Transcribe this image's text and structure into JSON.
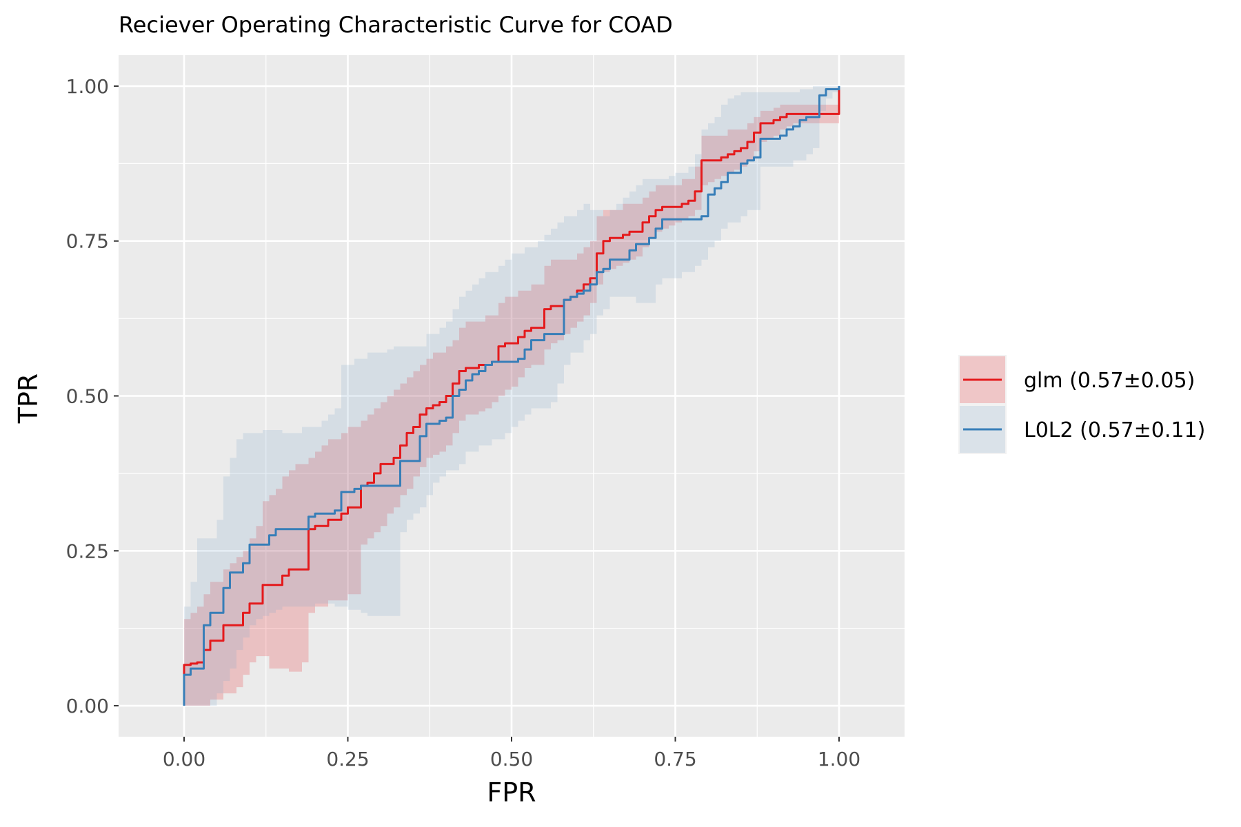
{
  "chart_data": {
    "type": "line",
    "title": "Reciever Operating Characteristic Curve for COAD",
    "xlabel": "FPR",
    "ylabel": "TPR",
    "xlim": [
      -0.1,
      1.1
    ],
    "ylim": [
      -0.05,
      1.05
    ],
    "x_ticks": [
      0,
      0.25,
      0.5,
      0.75,
      1
    ],
    "x_tick_labels": [
      "0.00",
      "0.25",
      "0.50",
      "0.75",
      "1.00"
    ],
    "y_ticks": [
      0,
      0.25,
      0.5,
      0.75,
      1
    ],
    "y_tick_labels": [
      "0.00",
      "0.25",
      "0.50",
      "0.75",
      "1.00"
    ],
    "grid": true,
    "legend_position": "right",
    "series": [
      {
        "name": "glm",
        "label": "glm (0.57±0.05)",
        "color": "#E41A1C",
        "fill": "#E41A1C",
        "x": [
          0,
          0,
          0.01,
          0.02,
          0.03,
          0.04,
          0.05,
          0.06,
          0.07,
          0.08,
          0.09,
          0.1,
          0.11,
          0.12,
          0.13,
          0.14,
          0.15,
          0.16,
          0.17,
          0.18,
          0.19,
          0.2,
          0.21,
          0.22,
          0.23,
          0.24,
          0.25,
          0.26,
          0.27,
          0.28,
          0.29,
          0.3,
          0.31,
          0.32,
          0.33,
          0.34,
          0.35,
          0.36,
          0.37,
          0.38,
          0.39,
          0.4,
          0.41,
          0.42,
          0.43,
          0.44,
          0.45,
          0.46,
          0.47,
          0.48,
          0.49,
          0.5,
          0.51,
          0.52,
          0.53,
          0.54,
          0.55,
          0.56,
          0.57,
          0.58,
          0.59,
          0.6,
          0.61,
          0.62,
          0.63,
          0.64,
          0.65,
          0.66,
          0.67,
          0.68,
          0.69,
          0.7,
          0.71,
          0.72,
          0.73,
          0.74,
          0.75,
          0.76,
          0.77,
          0.78,
          0.79,
          0.8,
          0.81,
          0.82,
          0.83,
          0.84,
          0.85,
          0.86,
          0.87,
          0.88,
          0.89,
          0.9,
          0.91,
          0.92,
          0.93,
          0.94,
          0.95,
          0.96,
          0.97,
          0.98,
          0.99,
          1.0
        ],
        "tpr": [
          0,
          0.066,
          0.068,
          0.07,
          0.09,
          0.105,
          0.105,
          0.13,
          0.13,
          0.13,
          0.15,
          0.165,
          0.165,
          0.195,
          0.195,
          0.195,
          0.21,
          0.22,
          0.22,
          0.22,
          0.285,
          0.29,
          0.29,
          0.3,
          0.3,
          0.31,
          0.32,
          0.32,
          0.355,
          0.36,
          0.375,
          0.39,
          0.39,
          0.4,
          0.42,
          0.44,
          0.45,
          0.47,
          0.48,
          0.485,
          0.49,
          0.5,
          0.52,
          0.54,
          0.545,
          0.545,
          0.55,
          0.55,
          0.555,
          0.58,
          0.585,
          0.585,
          0.595,
          0.605,
          0.61,
          0.61,
          0.64,
          0.645,
          0.645,
          0.655,
          0.66,
          0.67,
          0.68,
          0.69,
          0.73,
          0.75,
          0.755,
          0.755,
          0.76,
          0.765,
          0.765,
          0.78,
          0.79,
          0.8,
          0.805,
          0.805,
          0.805,
          0.81,
          0.815,
          0.83,
          0.88,
          0.88,
          0.88,
          0.885,
          0.89,
          0.895,
          0.9,
          0.91,
          0.925,
          0.94,
          0.94,
          0.945,
          0.95,
          0.955,
          0.955,
          0.955,
          0.955,
          0.955,
          0.955,
          0.955,
          0.955,
          1.0
        ],
        "lower": [
          0,
          0,
          0,
          0,
          0,
          0.01,
          0.01,
          0.02,
          0.02,
          0.03,
          0.05,
          0.07,
          0.08,
          0.08,
          0.06,
          0.06,
          0.06,
          0.055,
          0.055,
          0.07,
          0.15,
          0.16,
          0.16,
          0.17,
          0.17,
          0.17,
          0.18,
          0.18,
          0.26,
          0.27,
          0.28,
          0.29,
          0.31,
          0.32,
          0.34,
          0.35,
          0.37,
          0.385,
          0.4,
          0.405,
          0.41,
          0.42,
          0.44,
          0.46,
          0.47,
          0.47,
          0.475,
          0.48,
          0.49,
          0.5,
          0.51,
          0.515,
          0.53,
          0.545,
          0.55,
          0.55,
          0.575,
          0.585,
          0.59,
          0.6,
          0.61,
          0.62,
          0.63,
          0.65,
          0.68,
          0.7,
          0.705,
          0.71,
          0.715,
          0.72,
          0.725,
          0.74,
          0.755,
          0.765,
          0.77,
          0.775,
          0.78,
          0.785,
          0.79,
          0.8,
          0.84,
          0.845,
          0.85,
          0.855,
          0.86,
          0.865,
          0.87,
          0.88,
          0.895,
          0.91,
          0.915,
          0.92,
          0.93,
          0.935,
          0.94,
          0.94,
          0.94,
          0.94,
          0.94,
          0.94,
          0.94,
          1.0
        ],
        "upper": [
          0.07,
          0.14,
          0.15,
          0.16,
          0.18,
          0.2,
          0.2,
          0.22,
          0.23,
          0.24,
          0.25,
          0.27,
          0.29,
          0.33,
          0.34,
          0.35,
          0.37,
          0.38,
          0.39,
          0.39,
          0.4,
          0.41,
          0.42,
          0.43,
          0.43,
          0.44,
          0.45,
          0.45,
          0.46,
          0.47,
          0.48,
          0.49,
          0.5,
          0.51,
          0.52,
          0.53,
          0.54,
          0.55,
          0.56,
          0.57,
          0.57,
          0.58,
          0.59,
          0.61,
          0.62,
          0.62,
          0.62,
          0.63,
          0.63,
          0.65,
          0.66,
          0.66,
          0.67,
          0.67,
          0.68,
          0.68,
          0.71,
          0.72,
          0.72,
          0.72,
          0.72,
          0.73,
          0.74,
          0.75,
          0.79,
          0.8,
          0.8,
          0.8,
          0.81,
          0.81,
          0.81,
          0.82,
          0.83,
          0.84,
          0.84,
          0.84,
          0.84,
          0.85,
          0.85,
          0.87,
          0.92,
          0.92,
          0.92,
          0.92,
          0.93,
          0.93,
          0.93,
          0.94,
          0.95,
          0.96,
          0.96,
          0.965,
          0.97,
          0.97,
          0.97,
          0.97,
          0.97,
          0.97,
          0.97,
          0.97,
          0.97,
          1.0
        ]
      },
      {
        "name": "L0L2",
        "label": "L0L2 (0.57±0.11)",
        "color": "#377EB8",
        "fill": "#7DA6C8",
        "x": [
          0,
          0,
          0.01,
          0.02,
          0.03,
          0.04,
          0.05,
          0.06,
          0.07,
          0.08,
          0.09,
          0.1,
          0.11,
          0.12,
          0.13,
          0.14,
          0.15,
          0.16,
          0.17,
          0.18,
          0.19,
          0.2,
          0.21,
          0.22,
          0.23,
          0.24,
          0.25,
          0.26,
          0.27,
          0.28,
          0.29,
          0.3,
          0.31,
          0.32,
          0.33,
          0.34,
          0.35,
          0.36,
          0.37,
          0.38,
          0.39,
          0.4,
          0.41,
          0.42,
          0.43,
          0.44,
          0.45,
          0.46,
          0.47,
          0.48,
          0.49,
          0.5,
          0.51,
          0.52,
          0.53,
          0.54,
          0.55,
          0.56,
          0.57,
          0.58,
          0.59,
          0.6,
          0.61,
          0.62,
          0.63,
          0.64,
          0.65,
          0.66,
          0.67,
          0.68,
          0.69,
          0.7,
          0.71,
          0.72,
          0.73,
          0.74,
          0.75,
          0.76,
          0.77,
          0.78,
          0.79,
          0.8,
          0.81,
          0.82,
          0.83,
          0.84,
          0.85,
          0.86,
          0.87,
          0.88,
          0.89,
          0.9,
          0.91,
          0.92,
          0.93,
          0.94,
          0.95,
          0.96,
          0.97,
          0.98,
          0.99,
          1.0
        ],
        "tpr": [
          0,
          0.05,
          0.06,
          0.06,
          0.13,
          0.15,
          0.15,
          0.19,
          0.215,
          0.215,
          0.23,
          0.26,
          0.26,
          0.26,
          0.275,
          0.285,
          0.285,
          0.285,
          0.285,
          0.285,
          0.305,
          0.31,
          0.31,
          0.31,
          0.315,
          0.345,
          0.345,
          0.35,
          0.355,
          0.355,
          0.355,
          0.355,
          0.355,
          0.355,
          0.395,
          0.395,
          0.395,
          0.435,
          0.455,
          0.455,
          0.46,
          0.465,
          0.5,
          0.51,
          0.525,
          0.535,
          0.54,
          0.55,
          0.555,
          0.555,
          0.555,
          0.555,
          0.56,
          0.575,
          0.59,
          0.59,
          0.6,
          0.6,
          0.6,
          0.655,
          0.66,
          0.665,
          0.67,
          0.68,
          0.7,
          0.705,
          0.72,
          0.72,
          0.72,
          0.735,
          0.745,
          0.745,
          0.755,
          0.77,
          0.785,
          0.785,
          0.785,
          0.785,
          0.785,
          0.785,
          0.79,
          0.825,
          0.835,
          0.845,
          0.86,
          0.86,
          0.875,
          0.88,
          0.885,
          0.915,
          0.915,
          0.915,
          0.92,
          0.93,
          0.935,
          0.945,
          0.95,
          0.95,
          0.985,
          0.995,
          0.995,
          1.0
        ],
        "lower": [
          0,
          0,
          0,
          0,
          0,
          0,
          0.02,
          0.04,
          0.06,
          0.09,
          0.11,
          0.13,
          0.14,
          0.145,
          0.15,
          0.155,
          0.16,
          0.16,
          0.16,
          0.16,
          0.16,
          0.165,
          0.165,
          0.165,
          0.16,
          0.16,
          0.155,
          0.155,
          0.15,
          0.145,
          0.145,
          0.145,
          0.145,
          0.145,
          0.28,
          0.3,
          0.31,
          0.32,
          0.34,
          0.36,
          0.37,
          0.38,
          0.38,
          0.39,
          0.41,
          0.41,
          0.42,
          0.42,
          0.43,
          0.43,
          0.44,
          0.45,
          0.46,
          0.47,
          0.48,
          0.48,
          0.48,
          0.49,
          0.52,
          0.55,
          0.57,
          0.57,
          0.59,
          0.6,
          0.63,
          0.64,
          0.66,
          0.66,
          0.66,
          0.66,
          0.65,
          0.65,
          0.65,
          0.68,
          0.69,
          0.69,
          0.69,
          0.7,
          0.7,
          0.71,
          0.72,
          0.74,
          0.75,
          0.77,
          0.78,
          0.78,
          0.79,
          0.8,
          0.8,
          0.87,
          0.87,
          0.87,
          0.87,
          0.87,
          0.88,
          0.88,
          0.89,
          0.9,
          0.96,
          0.98,
          0.99,
          1.0
        ],
        "upper": [
          0.1,
          0.16,
          0.2,
          0.27,
          0.27,
          0.27,
          0.3,
          0.37,
          0.4,
          0.43,
          0.44,
          0.44,
          0.44,
          0.445,
          0.445,
          0.445,
          0.44,
          0.44,
          0.44,
          0.45,
          0.45,
          0.45,
          0.46,
          0.47,
          0.48,
          0.55,
          0.55,
          0.56,
          0.56,
          0.57,
          0.57,
          0.57,
          0.575,
          0.58,
          0.58,
          0.58,
          0.58,
          0.58,
          0.6,
          0.6,
          0.61,
          0.62,
          0.64,
          0.66,
          0.67,
          0.68,
          0.69,
          0.7,
          0.7,
          0.71,
          0.72,
          0.73,
          0.73,
          0.74,
          0.74,
          0.75,
          0.76,
          0.77,
          0.78,
          0.79,
          0.79,
          0.8,
          0.81,
          0.8,
          0.8,
          0.79,
          0.8,
          0.81,
          0.82,
          0.83,
          0.84,
          0.85,
          0.85,
          0.85,
          0.85,
          0.855,
          0.86,
          0.86,
          0.87,
          0.89,
          0.93,
          0.94,
          0.95,
          0.97,
          0.98,
          0.985,
          0.99,
          0.99,
          0.99,
          0.99,
          0.99,
          0.99,
          0.99,
          0.99,
          0.99,
          0.995,
          0.995,
          1.0,
          1.0,
          1.0,
          1.0,
          1.0
        ]
      }
    ]
  }
}
